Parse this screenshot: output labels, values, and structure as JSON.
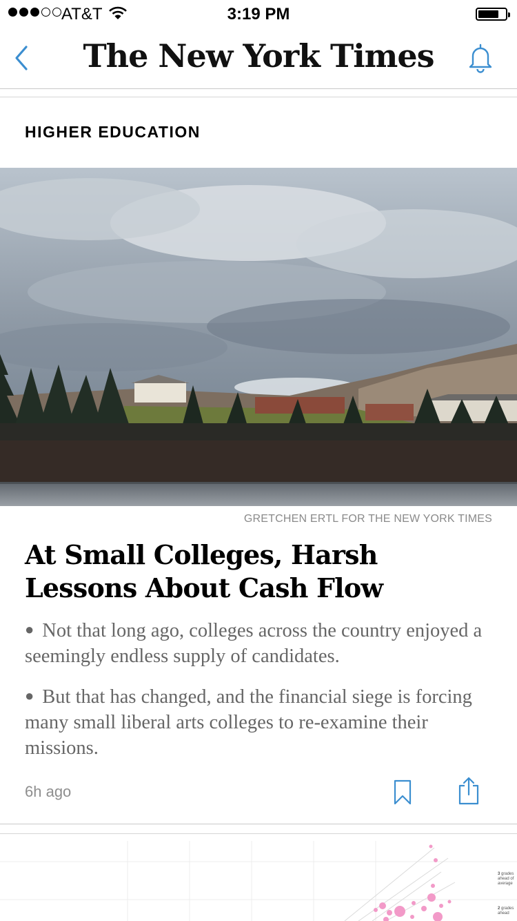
{
  "status_bar": {
    "carrier": "AT&T",
    "time": "3:19 PM",
    "signal_bars_filled": 3,
    "signal_bars_total": 5,
    "battery_level": 0.68
  },
  "nav": {
    "masthead": "The New York Times",
    "back_icon": "chevron-left-icon",
    "notifications_icon": "bell-icon",
    "accent_color": "#3b8ed0"
  },
  "article": {
    "section": "HIGHER EDUCATION",
    "photo_credit": "GRETCHEN ERTL FOR THE NEW YORK TIMES",
    "headline": "At Small Colleges, Harsh Lessons About Cash Flow",
    "bullets": [
      "Not that long ago, colleges across the country enjoyed a seemingly endless supply of candidates.",
      "But that has changed, and the financial siege is forcing many small liberal arts colleges to re-examine their missions."
    ],
    "timestamp": "6h ago",
    "actions": {
      "save_icon": "bookmark-icon",
      "share_icon": "share-icon"
    }
  },
  "next_graphic": {
    "labels": [
      {
        "bold": "3",
        "text": "grades ahead of average"
      },
      {
        "bold": "2",
        "text": "grades ahead"
      }
    ]
  }
}
